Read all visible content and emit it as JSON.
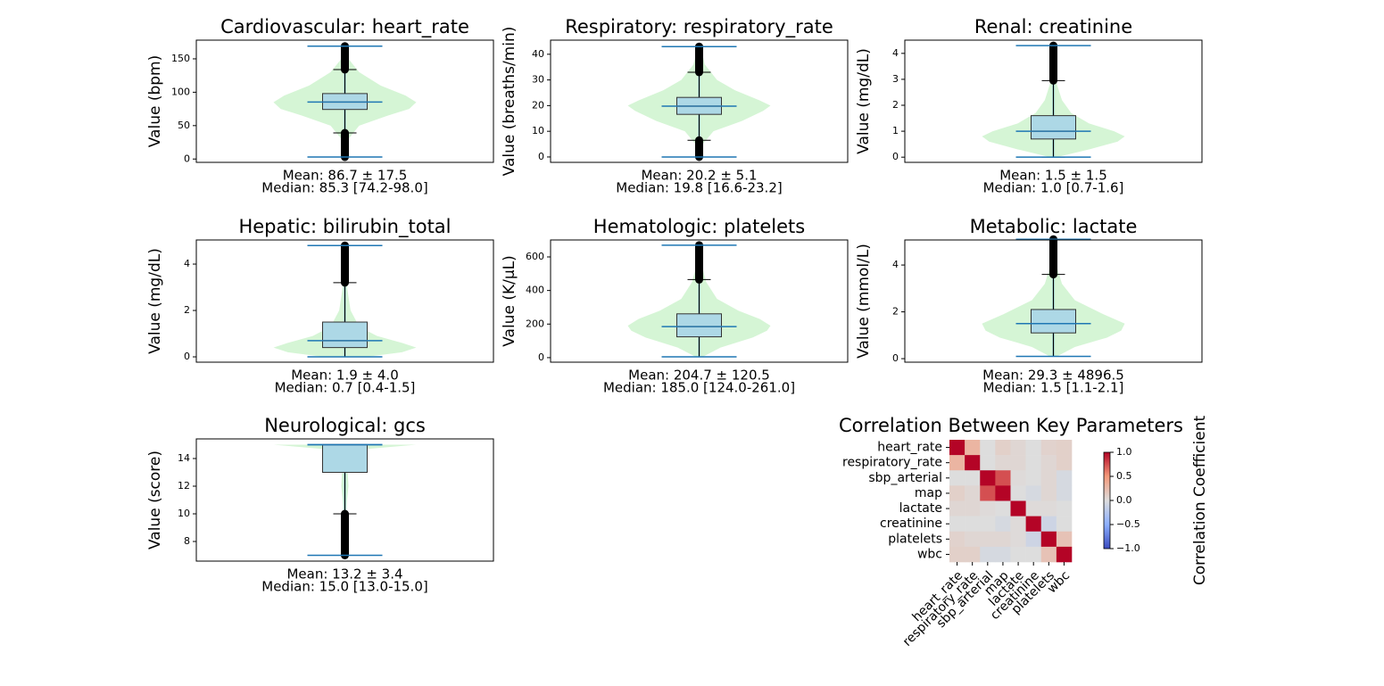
{
  "chart_data": [
    {
      "type": "box",
      "title": "Cardiovascular: heart_rate",
      "ylabel": "Value (bpm)",
      "ylim": [
        -5,
        178
      ],
      "yticks": [
        0,
        50,
        100,
        150
      ],
      "stats": {
        "min": 3,
        "whislo": 39,
        "q1": 74.2,
        "med": 85.3,
        "q3": 98.0,
        "whishi": 134,
        "max": 169
      },
      "outlier_ranges": [
        [
          3,
          39
        ],
        [
          134,
          169
        ]
      ],
      "violin": {
        "y": [
          3,
          30,
          50,
          65,
          75,
          85,
          95,
          110,
          130,
          150,
          169
        ],
        "density": [
          0.02,
          0.05,
          0.2,
          0.6,
          0.9,
          1.0,
          0.85,
          0.5,
          0.2,
          0.05,
          0.02
        ]
      },
      "annotations": [
        "Mean: 86.7 ± 17.5",
        "Median: 85.3 [74.2-98.0]"
      ],
      "colors": {
        "violin": "#d5f5d5",
        "box": "#add8e6",
        "median": "#e09a55",
        "extent": "#1f77b4",
        "outlier": "#000000"
      }
    },
    {
      "type": "box",
      "title": "Respiratory: respiratory_rate",
      "ylabel": "Value (breaths/min)",
      "ylim": [
        -2.1,
        45.5
      ],
      "yticks": [
        0,
        10,
        20,
        30,
        40
      ],
      "stats": {
        "min": 0,
        "whislo": 6.5,
        "q1": 16.6,
        "med": 19.8,
        "q3": 23.2,
        "whishi": 33,
        "max": 43
      },
      "outlier_ranges": [
        [
          0,
          6.5
        ],
        [
          33,
          43
        ]
      ],
      "violin": {
        "y": [
          0,
          5,
          10,
          14,
          18,
          20,
          22,
          26,
          30,
          36,
          43
        ],
        "density": [
          0.02,
          0.05,
          0.2,
          0.6,
          0.9,
          1.0,
          0.85,
          0.5,
          0.25,
          0.08,
          0.02
        ]
      },
      "annotations": [
        "Mean: 20.2 ± 5.1",
        "Median: 19.8 [16.6-23.2]"
      ],
      "colors": {
        "violin": "#d5f5d5",
        "box": "#add8e6",
        "median": "#e09a55",
        "extent": "#1f77b4",
        "outlier": "#000000"
      }
    },
    {
      "type": "box",
      "title": "Renal: creatinine",
      "ylabel": "Value (mg/dL)",
      "ylim": [
        -0.2,
        4.51
      ],
      "yticks": [
        0,
        1,
        2,
        3,
        4
      ],
      "stats": {
        "min": 0,
        "whislo": 0,
        "q1": 0.7,
        "med": 1.0,
        "q3": 1.6,
        "whishi": 2.95,
        "max": 4.3
      },
      "outlier_ranges": [
        [
          2.95,
          4.3
        ]
      ],
      "violin": {
        "y": [
          0,
          0.3,
          0.6,
          0.8,
          1.0,
          1.3,
          1.7,
          2.2,
          2.8,
          3.5,
          4.3
        ],
        "density": [
          0.05,
          0.5,
          0.9,
          1.0,
          0.85,
          0.5,
          0.25,
          0.12,
          0.05,
          0.03,
          0.02
        ]
      },
      "annotations": [
        "Mean: 1.5 ± 1.5",
        "Median: 1.0 [0.7-1.6]"
      ],
      "colors": {
        "violin": "#d5f5d5",
        "box": "#add8e6",
        "median": "#e09a55",
        "extent": "#1f77b4",
        "outlier": "#000000"
      }
    },
    {
      "type": "box",
      "title": "Hepatic: bilirubin_total",
      "ylabel": "Value (mg/dL)",
      "ylim": [
        -0.23,
        5.04
      ],
      "yticks": [
        0,
        2,
        4
      ],
      "stats": {
        "min": 0,
        "whislo": 0,
        "q1": 0.4,
        "med": 0.7,
        "q3": 1.5,
        "whishi": 3.2,
        "max": 4.8
      },
      "outlier_ranges": [
        [
          3.2,
          4.8
        ]
      ],
      "violin": {
        "y": [
          0,
          0.2,
          0.4,
          0.6,
          0.9,
          1.3,
          2,
          3,
          4,
          4.8
        ],
        "density": [
          0.3,
          0.8,
          1.0,
          0.8,
          0.45,
          0.2,
          0.08,
          0.03,
          0.02,
          0.01
        ]
      },
      "annotations": [
        "Mean: 1.9 ± 4.0",
        "Median: 0.7 [0.4-1.5]"
      ],
      "colors": {
        "violin": "#d5f5d5",
        "box": "#add8e6",
        "median": "#e09a55",
        "extent": "#1f77b4",
        "outlier": "#000000"
      }
    },
    {
      "type": "box",
      "title": "Hematologic: platelets",
      "ylabel": "Value (K/µL)",
      "ylim": [
        -27,
        701
      ],
      "yticks": [
        0,
        200,
        400,
        600
      ],
      "stats": {
        "min": 5,
        "whislo": 5,
        "q1": 124.0,
        "med": 185.0,
        "q3": 261.0,
        "whishi": 465,
        "max": 670
      },
      "outlier_ranges": [
        [
          465,
          670
        ]
      ],
      "violin": {
        "y": [
          5,
          60,
          120,
          160,
          190,
          230,
          280,
          350,
          450,
          560,
          670
        ],
        "density": [
          0.05,
          0.3,
          0.75,
          0.95,
          1.0,
          0.85,
          0.55,
          0.25,
          0.1,
          0.03,
          0.01
        ]
      },
      "annotations": [
        "Mean: 204.7 ± 120.5",
        "Median: 185.0 [124.0-261.0]"
      ],
      "colors": {
        "violin": "#d5f5d5",
        "box": "#add8e6",
        "median": "#e09a55",
        "extent": "#1f77b4",
        "outlier": "#000000"
      }
    },
    {
      "type": "box",
      "title": "Metabolic: lactate",
      "ylabel": "Value (mmol/L)",
      "ylim": [
        -0.15,
        5.07
      ],
      "yticks": [
        0,
        2,
        4
      ],
      "stats": {
        "min": 0.1,
        "whislo": 0.1,
        "q1": 1.1,
        "med": 1.5,
        "q3": 2.1,
        "whishi": 3.6,
        "max": 5.1
      },
      "outlier_ranges": [
        [
          3.6,
          5.1
        ]
      ],
      "violin": {
        "y": [
          0.1,
          0.5,
          0.9,
          1.2,
          1.5,
          1.9,
          2.5,
          3.2,
          4,
          5.1
        ],
        "density": [
          0.05,
          0.3,
          0.75,
          0.95,
          1.0,
          0.7,
          0.3,
          0.12,
          0.04,
          0.01
        ]
      },
      "annotations": [
        "Mean: 29.3 ± 4896.5",
        "Median: 1.5 [1.1-2.1]"
      ],
      "colors": {
        "violin": "#d5f5d5",
        "box": "#add8e6",
        "median": "#e09a55",
        "extent": "#1f77b4",
        "outlier": "#000000"
      }
    },
    {
      "type": "box",
      "title": "Neurological: gcs",
      "ylabel": "Value (score)",
      "ylim": [
        6.58,
        15.42
      ],
      "yticks": [
        8,
        10,
        12,
        14
      ],
      "stats": {
        "min": 7,
        "whislo": 10,
        "q1": 13.0,
        "med": 15.0,
        "q3": 15.0,
        "whishi": 15,
        "max": 15
      },
      "outlier_ranges": [
        [
          7,
          10
        ]
      ],
      "violin": {
        "y": [
          7,
          8,
          9,
          10,
          11,
          12,
          13,
          14,
          14.6,
          15
        ],
        "density": [
          0.02,
          0.02,
          0.02,
          0.02,
          0.03,
          0.05,
          0.04,
          0.05,
          0.1,
          1.0
        ]
      },
      "annotations": [
        "Mean: 13.2 ± 3.4",
        "Median: 15.0 [13.0-15.0]"
      ],
      "colors": {
        "violin": "#d5f5d5",
        "box": "#add8e6",
        "median": "#e09a55",
        "extent": "#1f77b4",
        "outlier": "#000000"
      }
    },
    {
      "type": "heatmap",
      "title": "Correlation Between Key Parameters",
      "labels": [
        "heart_rate",
        "respiratory_rate",
        "sbp_arterial",
        "map",
        "lactate",
        "creatinine",
        "platelets",
        "wbc"
      ],
      "matrix": [
        [
          1,
          0.3,
          0.0,
          0.1,
          0.05,
          0.0,
          0.08,
          0.1
        ],
        [
          0.3,
          1,
          0.0,
          0.05,
          0.05,
          0.0,
          0.05,
          0.1
        ],
        [
          0.0,
          0.0,
          1,
          0.75,
          0.02,
          0.0,
          0.05,
          -0.05
        ],
        [
          0.1,
          0.05,
          0.75,
          1,
          0.0,
          -0.05,
          0.05,
          -0.05
        ],
        [
          0.05,
          0.05,
          0.02,
          0.0,
          1,
          0.02,
          0.02,
          0.0
        ],
        [
          0.0,
          0.0,
          0.0,
          -0.05,
          0.02,
          1,
          -0.1,
          0.0
        ],
        [
          0.08,
          0.05,
          0.05,
          0.05,
          0.02,
          -0.1,
          1,
          0.2
        ],
        [
          0.1,
          0.1,
          -0.05,
          -0.05,
          0.0,
          0.0,
          0.2,
          1
        ]
      ],
      "cmap": "coolwarm",
      "clim": [
        -1,
        1
      ],
      "cticks": [
        {
          "value": 1,
          "label": "1.0"
        },
        0.5,
        {
          "value": 0,
          "label": "0.0"
        },
        {
          "value": -0.5,
          "label": "−0.5"
        },
        {
          "value": -1,
          "label": "−1.0"
        }
      ],
      "colorbar_label": "Correlation Coefficient"
    }
  ]
}
